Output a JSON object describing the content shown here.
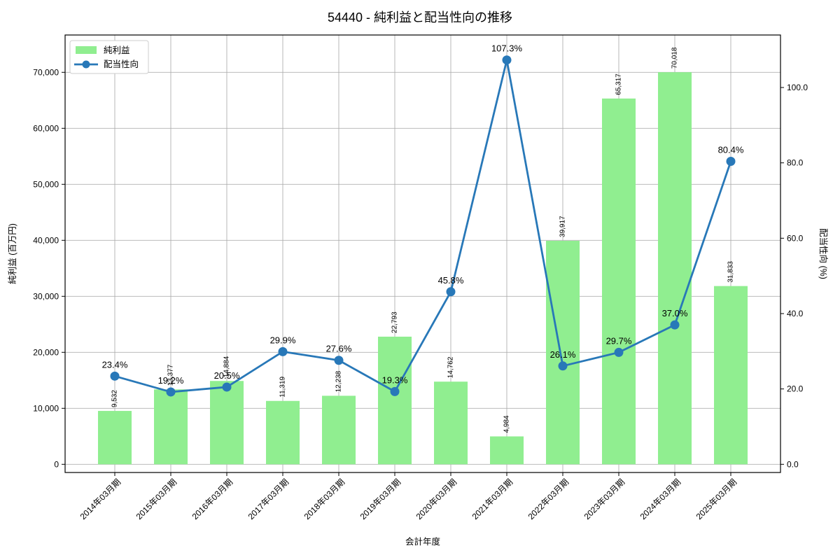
{
  "title": "54440 - 純利益と配当性向の推移",
  "legend": {
    "items": [
      {
        "label": "純利益",
        "type": "bar",
        "color": "#90ee90"
      },
      {
        "label": "配当性向",
        "type": "line",
        "color": "#2878b8"
      }
    ]
  },
  "chart_data": {
    "type": "bar+line",
    "title": "54440 - 純利益と配当性向の推移",
    "xlabel": "会計年度",
    "ylabel_left": "純利益 (百万円)",
    "ylabel_right": "配当性向 (%)",
    "categories": [
      "2014年03月期",
      "2015年03月期",
      "2016年03月期",
      "2017年03月期",
      "2018年03月期",
      "2019年03月期",
      "2020年03月期",
      "2021年03月期",
      "2022年03月期",
      "2023年03月期",
      "2024年03月期",
      "2025年03月期"
    ],
    "series": [
      {
        "name": "純利益",
        "type": "bar",
        "axis": "left",
        "color": "#90ee90",
        "values": [
          9532,
          13377,
          14884,
          11319,
          12238,
          22793,
          14762,
          4984,
          39917,
          65317,
          70018,
          31833
        ],
        "labels": [
          "9,532",
          "13,377",
          "14,884",
          "11,319",
          "12,238",
          "22,793",
          "14,762",
          "4,984",
          "39,917",
          "65,317",
          "70,018",
          "31,833"
        ]
      },
      {
        "name": "配当性向",
        "type": "line",
        "axis": "right",
        "color": "#2878b8",
        "values": [
          23.4,
          19.2,
          20.5,
          29.9,
          27.6,
          19.3,
          45.8,
          107.3,
          26.1,
          29.7,
          37.0,
          80.4
        ],
        "labels": [
          "23.4%",
          "19.2%",
          "20.5%",
          "29.9%",
          "27.6%",
          "19.3%",
          "45.8%",
          "107.3%",
          "26.1%",
          "29.7%",
          "37.0%",
          "80.4%"
        ]
      }
    ],
    "left_axis": {
      "tick_labels": [
        "0",
        "10,000",
        "20,000",
        "30,000",
        "40,000",
        "50,000",
        "60,000",
        "70,000"
      ],
      "tick_values": [
        0,
        10000,
        20000,
        30000,
        40000,
        50000,
        60000,
        70000
      ]
    },
    "right_axis": {
      "tick_labels": [
        "0.0",
        "20.0",
        "40.0",
        "60.0",
        "80.0",
        "100.0"
      ],
      "tick_values": [
        0,
        20,
        40,
        60,
        80,
        100
      ]
    },
    "grid": "both",
    "legend_position": "upper-left",
    "colors": {
      "bar": "#90ee90",
      "line": "#2878b8",
      "grid": "#b0b0b0",
      "spine": "#000000",
      "background": "#ffffff"
    }
  }
}
